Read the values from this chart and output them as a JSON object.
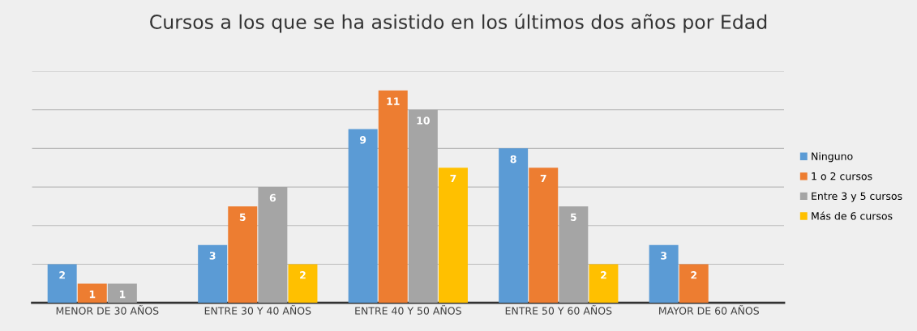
{
  "chart_data": {
    "type": "bar",
    "title": "Cursos a los que se ha asistido en los últimos dos años por Edad",
    "categories": [
      "MENOR DE 30 AÑOS",
      "ENTRE 30 Y 40 AÑOS",
      "ENTRE 40 Y 50 AÑOS",
      "ENTRE 50 Y 60 AÑOS",
      "MAYOR DE 60 AÑOS"
    ],
    "series": [
      {
        "name": "Ninguno",
        "color": "#5b9bd5",
        "values": [
          2,
          3,
          9,
          8,
          3
        ]
      },
      {
        "name": "1 o 2 cursos",
        "color": "#ed7d31",
        "values": [
          1,
          5,
          11,
          7,
          2
        ]
      },
      {
        "name": "Entre 3 y 5 cursos",
        "color": "#a5a5a5",
        "values": [
          1,
          6,
          10,
          5,
          null
        ]
      },
      {
        "name": "Más de 6 cursos",
        "color": "#ffc000",
        "values": [
          null,
          2,
          7,
          2,
          null
        ]
      }
    ],
    "ylim": [
      0,
      12
    ],
    "yticks": [
      {
        "value": 0,
        "label": null
      },
      {
        "value": 2,
        "label": null
      },
      {
        "value": 4,
        "label": null
      },
      {
        "value": 6,
        "label": null
      },
      {
        "value": 8,
        "label": null
      },
      {
        "value": 10,
        "label": null
      },
      {
        "value": 12,
        "label": null
      }
    ],
    "tick_labels": "x",
    "grid": "y",
    "legend": "right",
    "data_labels": true
  }
}
